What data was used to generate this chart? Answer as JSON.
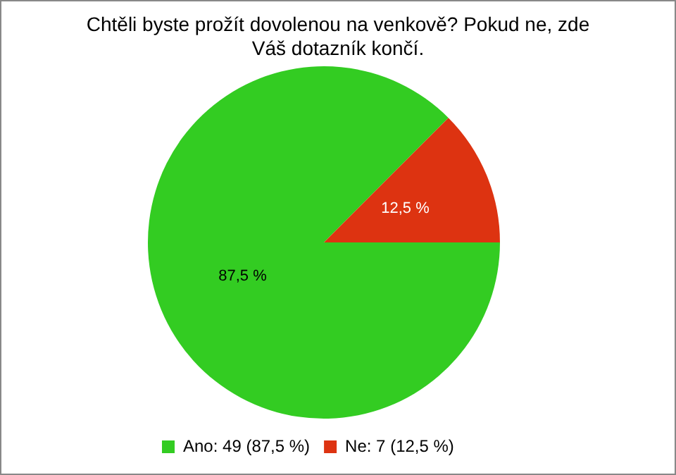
{
  "chart_data": {
    "type": "pie",
    "title": "Chtěli byste prožít dovolenou na venkově? Pokud ne, zde Váš dotazník končí.",
    "categories": [
      "Ano: 49 (87,5 %)",
      "Ne: 7 (12,5 %)"
    ],
    "values": [
      87.5,
      12.5
    ],
    "colors": [
      "#33cc22",
      "#dd3311"
    ],
    "value_labels": [
      "87,5 %",
      "12,5 %"
    ],
    "legend": "bottom left"
  }
}
